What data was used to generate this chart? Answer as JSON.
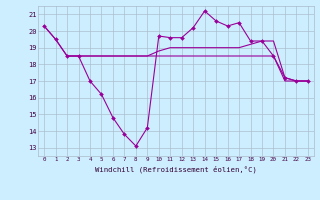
{
  "xlabel": "Windchill (Refroidissement éolien,°C)",
  "bg_color": "#cceeff",
  "line_color": "#990099",
  "grid_color": "#aabbcc",
  "x_values": [
    0,
    1,
    2,
    3,
    4,
    5,
    6,
    7,
    8,
    9,
    10,
    11,
    12,
    13,
    14,
    15,
    16,
    17,
    18,
    19,
    20,
    21,
    22,
    23
  ],
  "line1": [
    20.3,
    19.5,
    18.5,
    18.5,
    17.0,
    16.2,
    14.8,
    13.8,
    13.1,
    14.2,
    19.7,
    19.6,
    19.6,
    20.2,
    21.2,
    20.6,
    20.3,
    20.5,
    19.4,
    19.4,
    18.5,
    17.2,
    17.0,
    17.0
  ],
  "line2": [
    20.3,
    19.5,
    18.5,
    18.5,
    18.5,
    18.5,
    18.5,
    18.5,
    18.5,
    18.5,
    18.5,
    18.5,
    18.5,
    18.5,
    18.5,
    18.5,
    18.5,
    18.5,
    18.5,
    18.5,
    18.5,
    17.0,
    17.0,
    17.0
  ],
  "line3_x": [
    2,
    3,
    4,
    5,
    6,
    7,
    8,
    9,
    10,
    11,
    12,
    13,
    14,
    15,
    16,
    17,
    18,
    19,
    20,
    21,
    22,
    23
  ],
  "line3": [
    18.5,
    18.5,
    18.5,
    18.5,
    18.5,
    18.5,
    18.5,
    18.5,
    18.8,
    19.0,
    19.0,
    19.0,
    19.0,
    19.0,
    19.0,
    19.0,
    19.2,
    19.4,
    19.4,
    17.2,
    17.0,
    17.0
  ],
  "ylim": [
    12.5,
    21.5
  ],
  "yticks": [
    13,
    14,
    15,
    16,
    17,
    18,
    19,
    20,
    21
  ],
  "figsize": [
    3.2,
    2.0
  ],
  "dpi": 100
}
